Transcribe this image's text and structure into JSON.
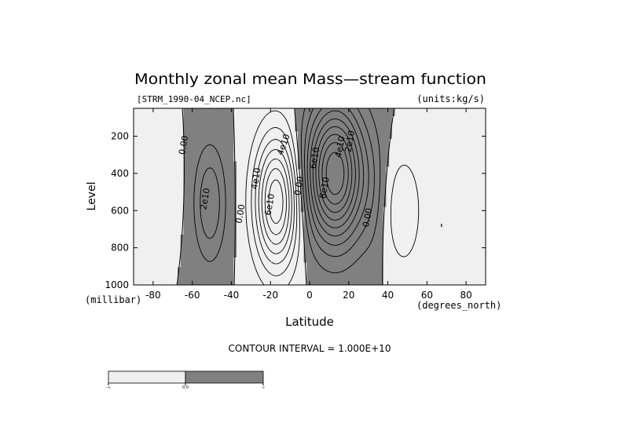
{
  "chart_data": {
    "type": "contour",
    "title": "Monthly zonal mean Mass—stream function",
    "file_label": "[STRM_1990-04_NCEP.nc]",
    "units_label": "(units:kg/s)",
    "xlabel": "Latitude",
    "x_unit_label": "(degrees_north)",
    "ylabel": "Level",
    "y_unit_label": "(millibar)",
    "xlim": [
      -90,
      90
    ],
    "ylim": [
      1000,
      50
    ],
    "y_inverted": true,
    "x_ticks": [
      -80,
      -60,
      -40,
      -20,
      0,
      20,
      40,
      60,
      80
    ],
    "y_ticks": [
      200,
      400,
      600,
      800,
      1000
    ],
    "x_tick_labels": [
      "-80",
      "-60",
      "-40",
      "-20",
      "0",
      "20",
      "40",
      "60",
      "80"
    ],
    "y_tick_labels": [
      "200",
      "400",
      "600",
      "800",
      "1000"
    ],
    "contour_interval_text": "CONTOUR INTERVAL = 1.000E+10",
    "contour_interval": 10000000000.0,
    "positive_style": "solid",
    "negative_style": "dashed",
    "shading": {
      "positive": "#808080",
      "negative": "#f0f0f0"
    },
    "colorbar": {
      "labels": [
        "-∞",
        "0.0",
        "∞"
      ],
      "colors": [
        "#f0f0f0",
        "#808080"
      ]
    },
    "contour_labels": [
      {
        "text": "0.00",
        "lat": -63,
        "lev": 250,
        "rot": -80
      },
      {
        "text": "2e10",
        "lat": -52,
        "lev": 540,
        "rot": -80
      },
      {
        "text": "0.00",
        "lat": -34,
        "lev": 620,
        "rot": -80
      },
      {
        "text": "4e10",
        "lat": -26,
        "lev": 430,
        "rot": -80
      },
      {
        "text": "6e10",
        "lat": -19,
        "lev": 570,
        "rot": -80
      },
      {
        "text": "4e10",
        "lat": -12,
        "lev": 250,
        "rot": -70
      },
      {
        "text": "0.00",
        "lat": -4,
        "lev": 470,
        "rot": -80
      },
      {
        "text": "6e10",
        "lat": 4,
        "lev": 320,
        "rot": -80
      },
      {
        "text": "8e10",
        "lat": 9,
        "lev": 480,
        "rot": -80
      },
      {
        "text": "2e10",
        "lat": 22,
        "lev": 230,
        "rot": -80
      },
      {
        "text": "4e10",
        "lat": 17,
        "lev": 260,
        "rot": -80
      },
      {
        "text": "0.00",
        "lat": 31,
        "lev": 640,
        "rot": -80
      }
    ],
    "cells": [
      {
        "sign": "positive",
        "center_lat": -51,
        "center_lev": 560,
        "peak": 30000000000.0,
        "lat_range": [
          -60,
          -35
        ],
        "lev_range": [
          200,
          1000
        ]
      },
      {
        "sign": "negative",
        "center_lat": -17,
        "center_lev": 550,
        "peak": -80000000000.0,
        "lat_range": [
          -35,
          0
        ],
        "lev_range": [
          90,
          1000
        ]
      },
      {
        "sign": "positive",
        "center_lat": 13,
        "center_lev": 400,
        "peak": 100000000000.0,
        "lat_range": [
          -8,
          38
        ],
        "lev_range": [
          60,
          1000
        ]
      },
      {
        "sign": "negative",
        "center_lat": 48,
        "center_lev": 600,
        "peak": -20000000000.0,
        "lat_range": [
          35,
          65
        ],
        "lev_range": [
          200,
          1000
        ]
      },
      {
        "sign": "positive",
        "center_lat": 32,
        "center_lev": 500,
        "peak": 8000000000.0,
        "lat_range": [
          22,
          44
        ],
        "lev_range": [
          60,
          1000
        ]
      },
      {
        "sign": "negative",
        "center_lat": 67,
        "center_lev": 680,
        "peak": -10000000000.0,
        "lat_range": [
          62,
          74
        ],
        "lev_range": [
          500,
          860
        ]
      },
      {
        "sign": "negative",
        "center_lat": -71,
        "center_lev": 480,
        "peak": -10000000000.0,
        "lat_range": [
          -78,
          -62
        ],
        "lev_range": [
          300,
          900
        ]
      }
    ]
  }
}
